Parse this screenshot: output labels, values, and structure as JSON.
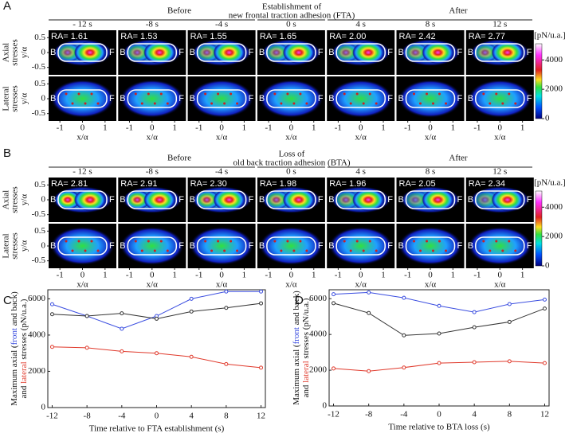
{
  "panel_labels": [
    "A",
    "B",
    "C",
    "D"
  ],
  "image_panels": [
    {
      "before": "Before",
      "event": [
        "Establishment of",
        "new frontal traction adhesion (FTA)"
      ],
      "after": "After",
      "times": [
        "- 12 s",
        "-8 s",
        "-4 s",
        "0 s",
        "4 s",
        "8 s",
        "12 s"
      ],
      "ra": [
        "RA= 1.61",
        "RA= 1.53",
        "RA= 1.55",
        "RA= 1.65",
        "RA= 2.00",
        "RA= 2.42",
        "RA= 2.77"
      ]
    },
    {
      "before": "Before",
      "event": [
        "Loss of",
        "old back traction adhesion (BTA)"
      ],
      "after": "After",
      "times": [
        "- 12 s",
        "-8 s",
        "-4 s",
        "0 s",
        "4 s",
        "8 s",
        "12 s"
      ],
      "ra": [
        "RA= 2.81",
        "RA= 2.91",
        "RA= 2.30",
        "RA= 1.98",
        "RA= 1.96",
        "RA= 2.05",
        "RA= 2.34"
      ]
    }
  ],
  "row_labels": [
    [
      "Axial",
      "stresses"
    ],
    [
      "Lateral",
      "stresses"
    ]
  ],
  "cell_labels": {
    "back": "B",
    "front": "F"
  },
  "image_axes": {
    "ylabel": "y/α",
    "ylim": [
      -0.75,
      0.75
    ],
    "yticks": [
      0.5,
      0,
      -0.5
    ],
    "xlabel": "x/α",
    "xlim": [
      -1.5,
      1.5
    ],
    "xticks": [
      -1,
      0,
      1
    ]
  },
  "colorbar": {
    "unit": "[pN/u.a.]",
    "lim": [
      0,
      5100
    ],
    "ticks": [
      4000,
      2000,
      0
    ]
  },
  "ylabel_parts": [
    [
      "Maximum axial (",
      "front",
      " and ",
      "back",
      ")"
    ],
    [
      "and ",
      "lateral",
      " stresses (pN/u.a.)"
    ]
  ],
  "chart_data": [
    {
      "type": "line",
      "xlabel": "Time relative to FTA establishment (s)",
      "x": [
        -12,
        -8,
        -4,
        0,
        4,
        8,
        12
      ],
      "xlim": [
        -12.5,
        12.5
      ],
      "xticks": [
        -12,
        -8,
        -4,
        0,
        4,
        8,
        12
      ],
      "ylim": [
        0,
        6500
      ],
      "yticks": [
        0,
        2000,
        4000,
        6000
      ],
      "series": [
        {
          "color": "#3a4de0",
          "values": [
            5700,
            5050,
            4350,
            5050,
            6000,
            6400,
            6400
          ]
        },
        {
          "color": "#333333",
          "values": [
            5150,
            5050,
            5200,
            4900,
            5300,
            5500,
            5750
          ]
        },
        {
          "color": "#e0392b",
          "values": [
            3350,
            3300,
            3100,
            3000,
            2800,
            2400,
            2200
          ]
        }
      ]
    },
    {
      "type": "line",
      "xlabel": "Time relative to BTA loss (s)",
      "x": [
        -12,
        -8,
        -4,
        0,
        4,
        8,
        12
      ],
      "xlim": [
        -12.5,
        12.5
      ],
      "xticks": [
        -12,
        -8,
        -4,
        0,
        4,
        8,
        12
      ],
      "ylim": [
        0,
        6500
      ],
      "yticks": [
        0,
        2000,
        4000,
        6000
      ],
      "series": [
        {
          "color": "#3a4de0",
          "values": [
            6250,
            6350,
            6050,
            5600,
            5250,
            5700,
            5950
          ]
        },
        {
          "color": "#333333",
          "values": [
            5750,
            5200,
            3950,
            4050,
            4400,
            4700,
            5450
          ]
        },
        {
          "color": "#e0392b",
          "values": [
            2100,
            1950,
            2150,
            2400,
            2450,
            2500,
            2400
          ]
        }
      ]
    }
  ]
}
